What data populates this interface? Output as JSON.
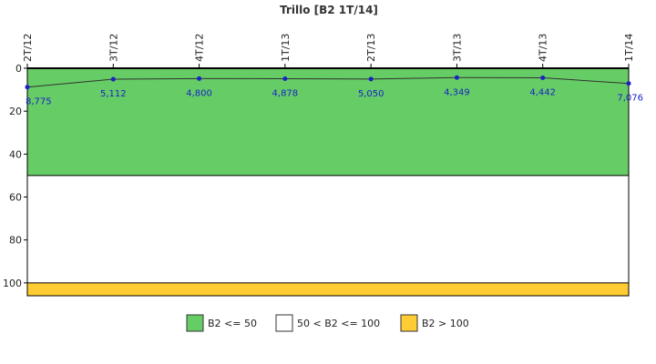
{
  "chart_data": {
    "type": "line",
    "title": "Trillo [B2 1T/14]",
    "categories": [
      "2T/12",
      "3T/12",
      "4T/12",
      "1T/13",
      "2T/13",
      "3T/13",
      "4T/13",
      "1T/14"
    ],
    "series": [
      {
        "values": [
          8.775,
          5.112,
          4.8,
          4.878,
          5.05,
          4.349,
          4.442,
          7.076
        ],
        "labels": [
          "8,775",
          "5,112",
          "4,800",
          "4,878",
          "5,050",
          "4,349",
          "4,442",
          "7,076"
        ],
        "color": "#1a22c8",
        "line_color": "#333333"
      }
    ],
    "yaxis": {
      "ticks": [
        0,
        20,
        40,
        60,
        80,
        100
      ],
      "tick_labels": [
        "0",
        "20",
        "40",
        "60",
        "80",
        "100"
      ],
      "range": [
        0,
        106
      ],
      "reversed": true
    },
    "bands": [
      {
        "from": 0,
        "to": 50,
        "color": "#66cc66",
        "label": "B2 <= 50"
      },
      {
        "from": 50,
        "to": 100,
        "color": "#ffffff",
        "label": "50 < B2 <= 100"
      },
      {
        "from": 100,
        "to": 106,
        "color": "#ffcc33",
        "label": "B2 > 100"
      }
    ],
    "grid": false,
    "legend_position": "bottom"
  }
}
